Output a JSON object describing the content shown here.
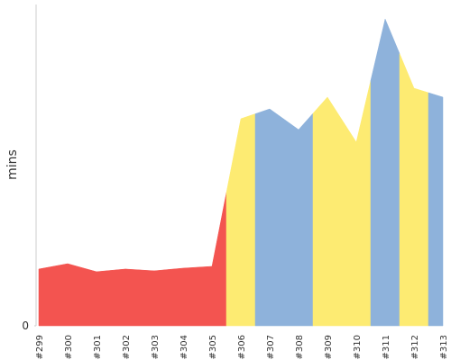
{
  "chart_data": {
    "type": "area",
    "y_label": "mins",
    "categories": [
      "#299",
      "#300",
      "#301",
      "#302",
      "#303",
      "#304",
      "#305",
      "#306",
      "#307",
      "#308",
      "#309",
      "#310",
      "#311",
      "#312",
      "#313"
    ],
    "values": [
      3.18,
      3.48,
      3.03,
      3.18,
      3.08,
      3.23,
      3.33,
      11.6,
      12.15,
      10.99,
      12.81,
      10.29,
      17.19,
      13.31,
      12.81
    ],
    "colors": [
      "#f35450",
      "#f35450",
      "#f35450",
      "#f35450",
      "#f35450",
      "#f35450",
      "#f35450",
      "#fdeb72",
      "#8eb2db",
      "#8eb2db",
      "#fdeb72",
      "#fdeb72",
      "#8eb2db",
      "#fdeb72",
      "#8eb2db"
    ],
    "ylim": [
      0,
      18
    ],
    "yticks": [
      0
    ]
  }
}
